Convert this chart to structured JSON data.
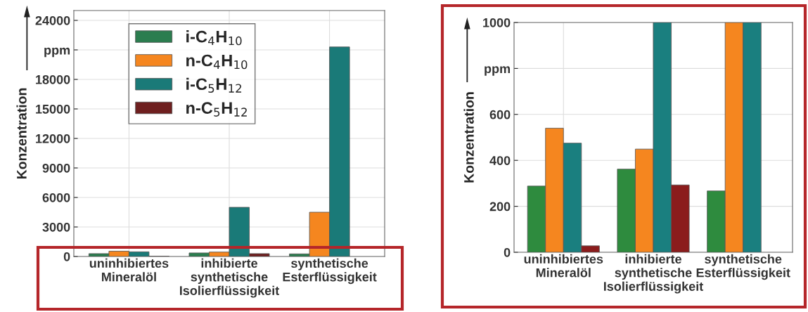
{
  "chart_data": [
    {
      "type": "bar",
      "ylabel": "Konzentration",
      "categories": [
        "uninhibiertes\nMineralöl",
        "inhibierte\nsynthetische\nIsolierflüssigkeit",
        "synthetische\nEsterflüssigkeit"
      ],
      "series": [
        {
          "name": "i-C$_{4}$H$_{10}$",
          "color": "#2b7d4f",
          "values": [
            290,
            360,
            265
          ]
        },
        {
          "name": "n-C$_{4}$H$_{10}$",
          "color": "#f5861f",
          "values": [
            540,
            450,
            4500
          ]
        },
        {
          "name": "i-C$_{5}$H$_{12}$",
          "color": "#1a7a78",
          "values": [
            475,
            5000,
            21300
          ]
        },
        {
          "name": "n-C$_{5}$H$_{12}$",
          "color": "#6e1f1f",
          "values": [
            25,
            290,
            null
          ]
        }
      ],
      "ylim": [
        0,
        25000
      ],
      "yticks": [
        0,
        3000,
        6000,
        9000,
        12000,
        15000,
        18000,
        {
          "value": 21000,
          "label": "ppm"
        },
        24000
      ],
      "grid": true,
      "legend": "top"
    },
    {
      "type": "bar",
      "ylabel": "Konzentration",
      "categories": [
        "uninhibiertes\nMineralöl",
        "inhibierte\nsynthetische\nIsolierflüssigkeit",
        "synthetische\nEsterflüssigkeit"
      ],
      "series": [
        {
          "color": "#2e8b3e",
          "values": [
            288,
            362,
            267
          ]
        },
        {
          "color": "#f5861f",
          "values": [
            540,
            449,
            1000
          ]
        },
        {
          "color": "#1a7f7f",
          "values": [
            475,
            1000,
            1000
          ]
        },
        {
          "color": "#8b1c1c",
          "values": [
            28,
            293,
            null
          ]
        }
      ],
      "ylim": [
        0,
        1000
      ],
      "yticks": [
        0,
        200,
        400,
        600,
        {
          "value": 800,
          "label": "ppm"
        },
        1000
      ],
      "grid": true
    }
  ]
}
